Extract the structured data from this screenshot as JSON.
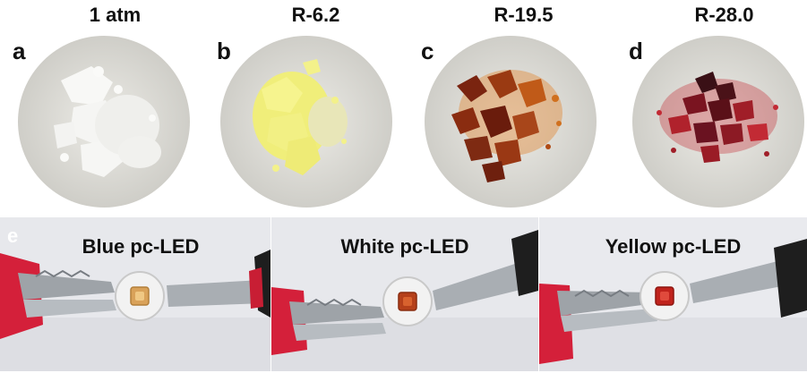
{
  "figure": {
    "top_panels": [
      {
        "letter": "a",
        "title": "1 atm",
        "sample_color": "#f2f2f0",
        "shadow_color": "#d8d8d4"
      },
      {
        "letter": "b",
        "title": "R-6.2",
        "sample_color": "#f4f28a",
        "shadow_color": "#e2df5a"
      },
      {
        "letter": "c",
        "title": "R-19.5",
        "sample_color": "#9a3a12",
        "shadow_color": "#d8741c"
      },
      {
        "letter": "d",
        "title": "R-28.0",
        "sample_color": "#7a1420",
        "shadow_color": "#c22a34"
      }
    ],
    "bottom_label": "e",
    "led_panels": [
      {
        "title": "Blue pc-LED",
        "chip_color": "#d9a25a"
      },
      {
        "title": "White pc-LED",
        "chip_color": "#b5401a"
      },
      {
        "title": "Yellow pc-LED",
        "chip_color": "#c0231c"
      }
    ]
  }
}
